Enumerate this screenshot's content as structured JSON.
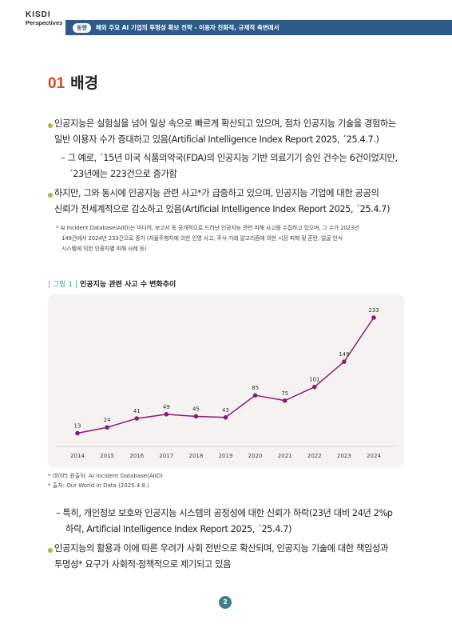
{
  "header": {
    "logo_top": "KISDI",
    "logo_bottom": "Perspectives",
    "tag": "동향",
    "title": "해외 주요 AI 기업의 투명성 확보 전략 - 이용자 친화적, 규제적 측면에서"
  },
  "section": {
    "number": "01",
    "title": "배경"
  },
  "paragraphs": {
    "p1_line1": "인공지능은 실험실을 넘어 일상 속으로 빠르게 확산되고 있으며, 점차 인공지능 기술을 경험하는",
    "p1_line2": "일반 이용자 수가 증대하고 있음(Artificial Intelligence Index Report 2025, ´25.4.7.)",
    "p1_sub_line1": "– 그 예로, ´15년 미국 식품의약국(FDA)의 인공지능 기반 의료기기 승인 건수는 6건이었지만,",
    "p1_sub_line2": "´23년에는 223건으로 증가함",
    "p2_line1": "하지만, 그와 동시에 인공지능 관련 사고*가 급증하고 있으며, 인공지능 기업에 대한 공공의",
    "p2_line2": "신뢰가 전세계적으로 감소하고 있음(Artificial Intelligence Index Report 2025, ´25.4.7)",
    "note_line1": "* AI Incident Database(AIID)는 미디어, 보고서 등 공개적으로 드러난 인공지능 관련 피해 사고를 수집하고 있으며, 그 수가 2023년",
    "note_line2": "149건에서 2024년 233건으로 증가 (자율주행차에 의한 인명 사고, 주식 거래 알고리즘에 의한 시장 피해 및 혼란, 얼굴 인식",
    "note_line3": "시스템에 의한 인종차별 피해 사례 등)",
    "p3_line1": "– 특히, 개인정보 보호와 인공지능 시스템의 공정성에 대한 신뢰가 하락(23년 대비 24년 2%p",
    "p3_line2": "하락, Artificial Intelligence Index Report 2025, ´25.4.7)",
    "p4_line1": "인공지능의 활용과 이에 따른 우려가 사회 전반으로 확산되며, 인공지능 기술에 대한 책임성과",
    "p4_line2": "투명성* 요구가 사회적·정책적으로 제기되고 있음"
  },
  "figure": {
    "label": "| 그림 1 |",
    "title": "인공지능 관련 사고 수 변화추이",
    "source1": "* 데이터 원출처: AI Incident Database(AIID)",
    "source2": "* 출처: Our World in Data (2025.4.8.)"
  },
  "chart_data": {
    "type": "line",
    "title": "인공지능 관련 사고 수 변화추이",
    "x": [
      "2014",
      "2015",
      "2016",
      "2017",
      "2018",
      "2019",
      "2020",
      "2021",
      "2022",
      "2023",
      "2024"
    ],
    "series": [
      {
        "values": [
          13,
          24,
          41,
          49,
          45,
          43,
          85,
          75,
          101,
          149,
          233
        ]
      }
    ],
    "ylim": [
      0,
      233
    ],
    "grid": false,
    "color": "#8b1a73"
  },
  "page_number": "2",
  "colors": {
    "accent_red": "#d9472b",
    "banner_blue": "#2e5a8a",
    "bullet": "#b7b341",
    "teal": "#2ba2a8",
    "line": "#8b1a73"
  }
}
